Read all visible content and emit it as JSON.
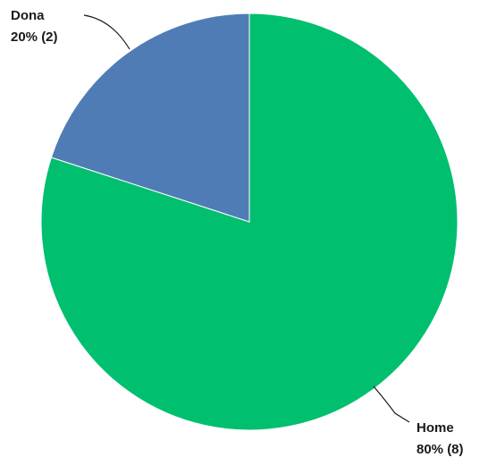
{
  "chart_data": {
    "type": "pie",
    "title": "",
    "slices": [
      {
        "label": "Home",
        "value": 8,
        "percent": "80%",
        "color": "#00BF6F"
      },
      {
        "label": "Dona",
        "value": 2,
        "percent": "20%",
        "color": "#507CB6"
      }
    ],
    "start": "12 o'clock",
    "direction": "clockwise",
    "data_labels": {
      "home_name": "Home",
      "home_value": "80% (8)",
      "dona_name": "Dona",
      "dona_value": "20% (2)"
    }
  }
}
